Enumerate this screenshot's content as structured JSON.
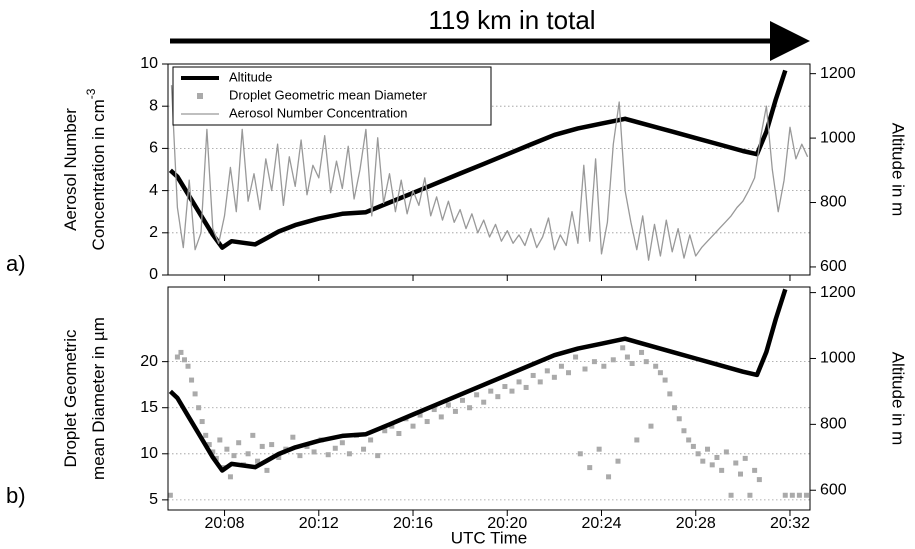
{
  "chart_data": [
    {
      "type": "line",
      "panel_label": "a)",
      "annotation": "119 km in total",
      "ylabel": [
        "Aerosol Number",
        "Concentration in cm"
      ],
      "ylabel_superscript": "-3",
      "y2label": "Altitude in m",
      "xlim": [
        1205.6,
        1232.85
      ],
      "xticks": [
        1208,
        1212,
        1216,
        1220,
        1224,
        1228,
        1232
      ],
      "xtick_labels": false,
      "ylim": [
        0,
        10
      ],
      "yticks": [
        0,
        2,
        4,
        6,
        8,
        10
      ],
      "y2lim": [
        575,
        1230
      ],
      "y2ticks": [
        600,
        800,
        1000,
        1200
      ],
      "grid": true,
      "legend": "upper left",
      "series": [
        {
          "name": "Altitude",
          "type": "line",
          "axis": "y2",
          "color": "#000000",
          "linewidth": 4.5,
          "x": [
            1205.7,
            1206.0,
            1206.5,
            1207.0,
            1207.5,
            1207.9,
            1208.3,
            1208.8,
            1209.3,
            1209.8,
            1210.3,
            1211.0,
            1212.0,
            1213.0,
            1214.0,
            1215.0,
            1216.0,
            1217.0,
            1218.0,
            1219.0,
            1220.0,
            1221.0,
            1222.0,
            1223.0,
            1224.0,
            1225.0,
            1226.0,
            1227.0,
            1228.0,
            1229.0,
            1230.0,
            1230.6,
            1231.0,
            1231.4,
            1231.8
          ],
          "values": [
            900,
            880,
            820,
            760,
            700,
            660,
            680,
            675,
            670,
            690,
            710,
            730,
            750,
            765,
            770,
            800,
            830,
            860,
            890,
            920,
            950,
            980,
            1010,
            1030,
            1045,
            1060,
            1040,
            1020,
            1000,
            980,
            960,
            950,
            1020,
            1120,
            1210
          ]
        },
        {
          "name": "Aerosol Number Concentration",
          "type": "line",
          "color": "#999999",
          "linewidth": 1.3,
          "x": [
            1205.75,
            1206,
            1206.25,
            1206.5,
            1206.75,
            1207,
            1207.25,
            1207.5,
            1207.75,
            1208,
            1208.25,
            1208.5,
            1208.75,
            1209,
            1209.25,
            1209.5,
            1209.75,
            1210,
            1210.25,
            1210.5,
            1210.75,
            1211,
            1211.25,
            1211.5,
            1211.75,
            1212,
            1212.25,
            1212.5,
            1212.75,
            1213,
            1213.25,
            1213.5,
            1213.75,
            1214,
            1214.25,
            1214.5,
            1214.75,
            1215,
            1215.25,
            1215.5,
            1215.75,
            1216,
            1216.25,
            1216.5,
            1216.75,
            1217,
            1217.25,
            1217.5,
            1217.75,
            1218,
            1218.25,
            1218.5,
            1218.75,
            1219,
            1219.25,
            1219.5,
            1219.75,
            1220,
            1220.25,
            1220.5,
            1220.75,
            1221,
            1221.25,
            1221.5,
            1221.75,
            1222,
            1222.25,
            1222.5,
            1222.75,
            1223,
            1223.25,
            1223.5,
            1223.75,
            1224,
            1224.25,
            1224.5,
            1224.75,
            1225,
            1225.25,
            1225.5,
            1225.75,
            1226,
            1226.25,
            1226.5,
            1226.75,
            1227,
            1227.25,
            1227.5,
            1227.75,
            1228,
            1228.25,
            1228.5,
            1228.75,
            1229,
            1229.25,
            1229.5,
            1229.75,
            1230,
            1230.25,
            1230.5,
            1230.75,
            1231,
            1231.25,
            1231.5,
            1231.75,
            1232,
            1232.25,
            1232.5,
            1232.75
          ],
          "values": [
            9.0,
            3.2,
            1.3,
            4.5,
            1.2,
            2.0,
            6.9,
            2.2,
            1.5,
            2.8,
            5.1,
            3.0,
            6.9,
            3.5,
            4.8,
            3.1,
            5.5,
            4.0,
            6.2,
            3.3,
            5.6,
            4.2,
            6.4,
            3.8,
            5.2,
            4.6,
            6.6,
            3.9,
            5.4,
            4.1,
            6.1,
            3.6,
            5.0,
            6.9,
            2.8,
            6.5,
            3.4,
            4.8,
            3.0,
            4.5,
            2.9,
            4.0,
            3.3,
            4.6,
            2.8,
            3.7,
            2.6,
            3.5,
            2.5,
            3.1,
            2.2,
            2.9,
            2.0,
            2.6,
            1.8,
            2.4,
            1.6,
            2.1,
            1.5,
            1.9,
            1.4,
            2.2,
            1.3,
            1.8,
            2.7,
            1.2,
            1.9,
            1.4,
            3.0,
            1.5,
            5.2,
            1.6,
            5.5,
            1.0,
            2.5,
            6.2,
            8.2,
            4.0,
            2.5,
            1.2,
            2.8,
            0.7,
            2.4,
            0.9,
            2.6,
            1.1,
            2.2,
            0.8,
            1.9,
            0.9,
            1.3,
            1.6,
            1.9,
            2.2,
            2.5,
            2.8,
            3.2,
            3.5,
            4.0,
            4.6,
            6.5,
            8.0,
            5.0,
            3.0,
            4.5,
            7.0,
            5.5,
            6.2,
            5.6
          ]
        }
      ]
    },
    {
      "type": "line",
      "panel_label": "b)",
      "ylabel": [
        "Droplet Geometric",
        "mean Diameter in µm"
      ],
      "y2label": "Altitude in m",
      "xlabel": "UTC Time",
      "xlim": [
        1205.6,
        1232.85
      ],
      "xticks": [
        {
          "value": 1208,
          "label": "20:08"
        },
        {
          "value": 1212,
          "label": "20:12"
        },
        {
          "value": 1216,
          "label": "20:16"
        },
        {
          "value": 1220,
          "label": "20:20"
        },
        {
          "value": 1224,
          "label": "20:24"
        },
        {
          "value": 1228,
          "label": "20:28"
        },
        {
          "value": 1232,
          "label": "20:32"
        }
      ],
      "xtick_labels": true,
      "ylim": [
        3.9,
        28.1
      ],
      "yticks": [
        5,
        10,
        15,
        20
      ],
      "y2lim": [
        540,
        1217
      ],
      "y2ticks": [
        600,
        800,
        1000,
        1200
      ],
      "grid": true,
      "series": [
        {
          "name": "Droplet Geometric mean Diameter",
          "type": "scatter",
          "color": "#aaaaaa",
          "x": [
            1205.7,
            1206.0,
            1206.15,
            1206.3,
            1206.45,
            1206.6,
            1206.75,
            1206.9,
            1207.05,
            1207.2,
            1207.35,
            1207.5,
            1207.65,
            1207.8,
            1207.95,
            1208.1,
            1208.25,
            1208.4,
            1208.6,
            1208.8,
            1209.0,
            1209.2,
            1209.4,
            1209.6,
            1209.8,
            1210.0,
            1210.3,
            1210.6,
            1210.9,
            1211.2,
            1211.5,
            1211.8,
            1212.1,
            1212.4,
            1212.7,
            1213.0,
            1213.3,
            1213.6,
            1213.9,
            1214.2,
            1214.5,
            1214.8,
            1215.1,
            1215.4,
            1215.7,
            1216.0,
            1216.3,
            1216.6,
            1216.9,
            1217.2,
            1217.5,
            1217.8,
            1218.1,
            1218.4,
            1218.7,
            1219.0,
            1219.3,
            1219.6,
            1219.9,
            1220.2,
            1220.5,
            1220.8,
            1221.1,
            1221.4,
            1221.7,
            1222.0,
            1222.3,
            1222.6,
            1222.9,
            1223.1,
            1223.3,
            1223.5,
            1223.7,
            1223.9,
            1224.1,
            1224.3,
            1224.5,
            1224.7,
            1224.9,
            1225.1,
            1225.3,
            1225.5,
            1225.7,
            1225.9,
            1226.1,
            1226.3,
            1226.5,
            1226.7,
            1226.9,
            1227.1,
            1227.3,
            1227.5,
            1227.7,
            1227.9,
            1228.1,
            1228.3,
            1228.5,
            1228.7,
            1228.9,
            1229.1,
            1229.3,
            1229.5,
            1229.7,
            1229.9,
            1230.1,
            1230.3,
            1230.5,
            1230.7,
            1231.8,
            1232.1,
            1232.4,
            1232.7
          ],
          "values": [
            5.5,
            20.5,
            21.0,
            20.2,
            19.5,
            18.0,
            16.5,
            15.0,
            13.5,
            12.0,
            11.0,
            10.2,
            9.5,
            11.5,
            8.5,
            10.5,
            7.5,
            9.8,
            11.2,
            8.8,
            10.0,
            12.0,
            9.2,
            10.8,
            8.2,
            11.0,
            9.6,
            10.5,
            11.8,
            9.8,
            10.8,
            10.2,
            11.5,
            9.9,
            10.6,
            11.2,
            10.0,
            12.0,
            10.5,
            11.5,
            9.8,
            12.5,
            13.0,
            12.2,
            13.8,
            13.0,
            14.2,
            13.5,
            14.8,
            14.0,
            15.3,
            14.6,
            15.8,
            15.0,
            16.4,
            15.6,
            16.8,
            16.2,
            17.3,
            16.8,
            17.8,
            17.2,
            18.5,
            17.8,
            19.0,
            18.3,
            19.5,
            18.8,
            20.5,
            10.0,
            19.2,
            8.5,
            20.0,
            10.5,
            19.5,
            7.5,
            20.2,
            9.2,
            21.5,
            20.5,
            19.8,
            11.5,
            21.0,
            20.0,
            13.0,
            19.5,
            18.8,
            18.0,
            16.5,
            15.0,
            13.8,
            12.5,
            11.5,
            10.8,
            10.0,
            9.2,
            10.5,
            8.8,
            9.6,
            8.2,
            10.2,
            5.5,
            9.0,
            7.8,
            9.5,
            5.5,
            8.2,
            7.2,
            5.5,
            5.5,
            5.5,
            5.5
          ]
        },
        {
          "name": "Altitude",
          "type": "line",
          "axis": "y2",
          "color": "#000000",
          "linewidth": 4.5,
          "x": [
            1205.7,
            1206.0,
            1206.5,
            1207.0,
            1207.5,
            1207.9,
            1208.3,
            1208.8,
            1209.3,
            1209.8,
            1210.3,
            1211.0,
            1212.0,
            1213.0,
            1214.0,
            1215.0,
            1216.0,
            1217.0,
            1218.0,
            1219.0,
            1220.0,
            1221.0,
            1222.0,
            1223.0,
            1224.0,
            1225.0,
            1226.0,
            1227.0,
            1228.0,
            1229.0,
            1230.0,
            1230.6,
            1231.0,
            1231.4,
            1231.8
          ],
          "values": [
            900,
            880,
            820,
            760,
            700,
            660,
            680,
            675,
            670,
            690,
            710,
            730,
            750,
            765,
            770,
            800,
            830,
            860,
            890,
            920,
            950,
            980,
            1010,
            1030,
            1045,
            1060,
            1040,
            1020,
            1000,
            980,
            960,
            950,
            1020,
            1120,
            1210
          ]
        }
      ]
    }
  ]
}
